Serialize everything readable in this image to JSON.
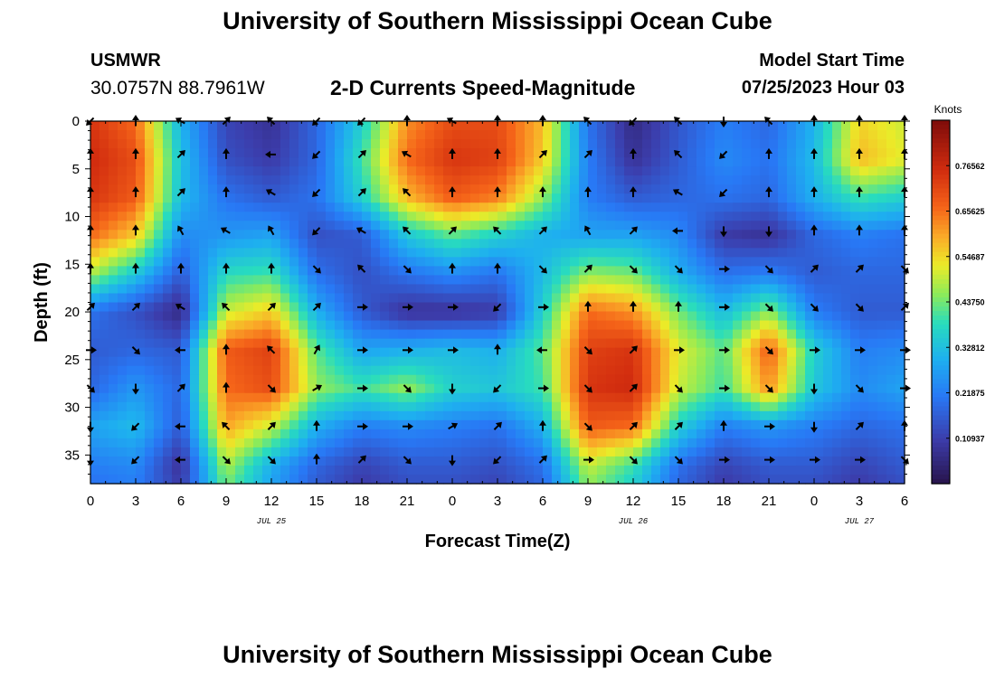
{
  "header": {
    "title": "University of Southern Mississippi Ocean Cube",
    "station": "USMWR",
    "coords": "30.0757N  88.7961W",
    "subtitle": "2-D Currents Speed-Magnitude",
    "model_label": "Model Start Time",
    "model_time": "07/25/2023 Hour 03",
    "footer_title": "University of Southern Mississippi Ocean Cube"
  },
  "chart_data": {
    "type": "heatmap",
    "title": "2-D Currents Speed-Magnitude",
    "xlabel": "Forecast Time(Z)",
    "ylabel": "Depth (ft)",
    "x_tick_labels": [
      "0",
      "3",
      "6",
      "9",
      "12",
      "15",
      "18",
      "21",
      "0",
      "3",
      "6",
      "9",
      "12",
      "15",
      "18",
      "21",
      "0",
      "3",
      "6"
    ],
    "x_hours": [
      0,
      3,
      6,
      9,
      12,
      15,
      18,
      21,
      24,
      27,
      30,
      33,
      36,
      39,
      42,
      45,
      48,
      51,
      54
    ],
    "date_labels": [
      {
        "label": "JUL 25",
        "hour": 12
      },
      {
        "label": "JUL 26",
        "hour": 36
      },
      {
        "label": "JUL 27",
        "hour": 51
      }
    ],
    "ylim": [
      0,
      38
    ],
    "y_ticks": [
      0,
      5,
      10,
      15,
      20,
      25,
      30,
      35
    ],
    "colorbar": {
      "title": "Knots",
      "range": [
        0.0,
        0.875
      ],
      "tick_values": [
        0.10937,
        0.21875,
        0.32812,
        0.4375,
        0.54687,
        0.65625,
        0.76562
      ],
      "tick_labels": [
        "0.10937",
        "0.21875",
        "0.32812",
        "0.43750",
        "0.54687",
        "0.65625",
        "0.76562"
      ]
    },
    "speed_grid": {
      "hours": [
        0,
        3,
        6,
        9,
        12,
        15,
        18,
        21,
        24,
        27,
        30,
        33,
        36,
        39,
        42,
        45,
        48,
        51,
        54
      ],
      "depths": [
        0,
        4,
        8,
        12,
        16,
        20,
        24,
        28,
        32,
        36,
        38
      ],
      "rows": [
        [
          0.74,
          0.66,
          0.3,
          0.12,
          0.08,
          0.18,
          0.35,
          0.62,
          0.7,
          0.7,
          0.58,
          0.2,
          0.06,
          0.15,
          0.22,
          0.18,
          0.3,
          0.55,
          0.5
        ],
        [
          0.76,
          0.7,
          0.33,
          0.14,
          0.1,
          0.18,
          0.4,
          0.66,
          0.74,
          0.72,
          0.56,
          0.22,
          0.08,
          0.16,
          0.24,
          0.2,
          0.32,
          0.58,
          0.52
        ],
        [
          0.74,
          0.68,
          0.32,
          0.2,
          0.16,
          0.2,
          0.36,
          0.58,
          0.68,
          0.64,
          0.46,
          0.22,
          0.16,
          0.18,
          0.2,
          0.18,
          0.3,
          0.4,
          0.36
        ],
        [
          0.66,
          0.56,
          0.24,
          0.26,
          0.28,
          0.14,
          0.16,
          0.34,
          0.42,
          0.36,
          0.3,
          0.28,
          0.28,
          0.24,
          0.1,
          0.08,
          0.18,
          0.22,
          0.2
        ],
        [
          0.48,
          0.34,
          0.16,
          0.38,
          0.4,
          0.2,
          0.14,
          0.2,
          0.24,
          0.2,
          0.32,
          0.46,
          0.44,
          0.3,
          0.2,
          0.22,
          0.16,
          0.18,
          0.18
        ],
        [
          0.2,
          0.14,
          0.06,
          0.5,
          0.56,
          0.3,
          0.16,
          0.08,
          0.08,
          0.1,
          0.36,
          0.66,
          0.62,
          0.44,
          0.32,
          0.46,
          0.22,
          0.16,
          0.16
        ],
        [
          0.16,
          0.18,
          0.16,
          0.68,
          0.72,
          0.42,
          0.28,
          0.3,
          0.32,
          0.3,
          0.42,
          0.72,
          0.74,
          0.52,
          0.42,
          0.68,
          0.36,
          0.22,
          0.24
        ],
        [
          0.18,
          0.26,
          0.18,
          0.66,
          0.7,
          0.46,
          0.4,
          0.46,
          0.36,
          0.34,
          0.4,
          0.74,
          0.76,
          0.5,
          0.4,
          0.62,
          0.34,
          0.24,
          0.28
        ],
        [
          0.28,
          0.32,
          0.16,
          0.6,
          0.5,
          0.3,
          0.22,
          0.24,
          0.22,
          0.2,
          0.3,
          0.68,
          0.66,
          0.36,
          0.22,
          0.26,
          0.22,
          0.18,
          0.2
        ],
        [
          0.22,
          0.24,
          0.08,
          0.48,
          0.3,
          0.18,
          0.12,
          0.16,
          0.16,
          0.14,
          0.2,
          0.5,
          0.4,
          0.2,
          0.12,
          0.16,
          0.16,
          0.12,
          0.16
        ],
        [
          0.2,
          0.22,
          0.1,
          0.44,
          0.28,
          0.16,
          0.1,
          0.14,
          0.14,
          0.12,
          0.18,
          0.46,
          0.36,
          0.18,
          0.1,
          0.14,
          0.14,
          0.1,
          0.14
        ]
      ]
    },
    "vectors": {
      "hours": [
        0,
        3,
        6,
        9,
        12,
        15,
        18,
        21,
        24,
        27,
        30,
        33,
        36,
        39,
        42,
        45,
        48,
        51,
        54
      ],
      "depths": [
        0,
        3.5,
        7.5,
        11.5,
        15.5,
        19.5,
        24,
        28,
        32,
        35.5
      ],
      "directions_deg": [
        [
          225,
          0,
          300,
          45,
          315,
          225,
          225,
          0,
          300,
          0,
          0,
          315,
          225,
          315,
          180,
          315,
          0,
          0,
          0
        ],
        [
          0,
          0,
          45,
          0,
          270,
          225,
          45,
          300,
          0,
          0,
          45,
          45,
          0,
          315,
          225,
          0,
          0,
          0,
          0
        ],
        [
          0,
          0,
          45,
          0,
          300,
          225,
          45,
          315,
          0,
          0,
          0,
          0,
          0,
          300,
          225,
          0,
          0,
          0,
          0
        ],
        [
          0,
          0,
          330,
          300,
          330,
          225,
          300,
          315,
          45,
          315,
          45,
          330,
          45,
          270,
          180,
          180,
          0,
          0,
          0
        ],
        [
          0,
          0,
          0,
          0,
          0,
          135,
          315,
          135,
          0,
          0,
          135,
          45,
          135,
          135,
          90,
          135,
          45,
          45,
          135
        ],
        [
          45,
          45,
          300,
          315,
          45,
          45,
          90,
          90,
          90,
          225,
          90,
          0,
          0,
          0,
          90,
          135,
          135,
          135,
          45
        ],
        [
          90,
          135,
          270,
          0,
          315,
          30,
          90,
          90,
          90,
          0,
          270,
          135,
          45,
          90,
          90,
          135,
          90,
          90,
          90
        ],
        [
          135,
          180,
          45,
          0,
          135,
          60,
          90,
          135,
          180,
          225,
          90,
          135,
          45,
          135,
          90,
          135,
          180,
          135,
          90
        ],
        [
          180,
          225,
          270,
          315,
          45,
          0,
          90,
          90,
          60,
          45,
          0,
          135,
          45,
          45,
          0,
          90,
          180,
          45,
          0
        ],
        [
          180,
          225,
          270,
          135,
          135,
          0,
          45,
          135,
          180,
          225,
          45,
          90,
          135,
          135,
          90,
          90,
          90,
          90,
          135
        ]
      ]
    }
  }
}
